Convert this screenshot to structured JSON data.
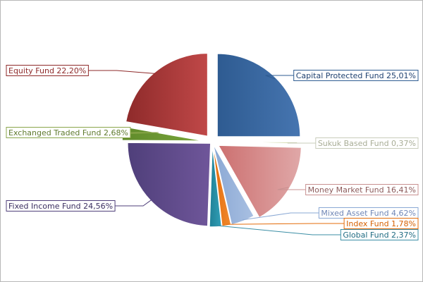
{
  "chart_data": {
    "type": "pie",
    "title": "",
    "slices": [
      {
        "label": "Capital Protected Fund",
        "value": 25.01,
        "value_text": "25,01%",
        "color": "#2e5b91",
        "color_light": "#4675b0",
        "text_color": "#1f4170",
        "border_color": "#2e5b91",
        "explode": true
      },
      {
        "label": "Sukuk Based Fund",
        "value": 0.37,
        "value_text": "0,37%",
        "color": "#b9c487",
        "color_light": "#cfd8a4",
        "text_color": "#a8ad96",
        "border_color": "#c8ccbb",
        "explode": false
      },
      {
        "label": "Money Market Fund",
        "value": 16.41,
        "value_text": "16,41%",
        "color": "#cc7070",
        "color_light": "#e0a8a8",
        "text_color": "#8c5a5a",
        "border_color": "#c89090",
        "explode": true
      },
      {
        "label": "Mixed Asset Fund",
        "value": 4.62,
        "value_text": "4,62%",
        "color": "#8aa8d4",
        "color_light": "#a9c0e2",
        "text_color": "#6f86b6",
        "border_color": "#8aa8d4",
        "explode": false
      },
      {
        "label": "Index Fund",
        "value": 1.78,
        "value_text": "1,78%",
        "color": "#e46c0a",
        "color_light": "#f08a30",
        "text_color": "#d66000",
        "border_color": "#e46c0a",
        "explode": false
      },
      {
        "label": "Global Fund",
        "value": 2.37,
        "value_text": "2,37%",
        "color": "#1f8096",
        "color_light": "#31a0b8",
        "text_color": "#1f6b82",
        "border_color": "#3b8ea5",
        "explode": false
      },
      {
        "label": "Fixed Income Fund",
        "value": 24.56,
        "value_text": "24,56%",
        "color": "#4f3f7a",
        "color_light": "#6f569a",
        "text_color": "#3a2e60",
        "border_color": "#4f3f7a",
        "explode": false
      },
      {
        "label": "Exchanged Traded Fund",
        "value": 2.68,
        "value_text": "2,68%",
        "color": "#5f8a2a",
        "color_light": "#7aa63b",
        "text_color": "#5f7a2e",
        "border_color": "#8aa64a",
        "explode": true
      },
      {
        "label": "Equity Fund",
        "value": 22.2,
        "value_text": "22,20%",
        "color": "#8e2a2a",
        "color_light": "#c04848",
        "text_color": "#8e2a2a",
        "border_color": "#8e2a2a",
        "explode": true
      }
    ],
    "start_direction": "12 o'clock",
    "direction": "clockwise",
    "legend": "callout labels"
  }
}
